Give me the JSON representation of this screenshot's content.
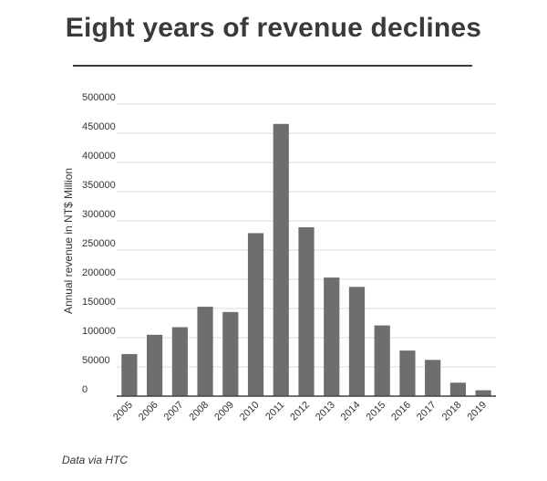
{
  "chart_data": {
    "type": "bar",
    "title": "Eight years of revenue declines",
    "xlabel": "",
    "ylabel": "Annual revenue in NT$ Million",
    "categories": [
      "2005",
      "2006",
      "2007",
      "2008",
      "2009",
      "2010",
      "2011",
      "2012",
      "2013",
      "2014",
      "2015",
      "2016",
      "2017",
      "2018",
      "2019"
    ],
    "values": [
      72000,
      105000,
      118000,
      153000,
      144000,
      279000,
      466000,
      289000,
      203000,
      187000,
      121000,
      78000,
      62000,
      23000,
      10000
    ],
    "ylim": [
      0,
      500000
    ],
    "yticks": [
      "0",
      "50000",
      "100000",
      "150000",
      "200000",
      "250000",
      "300000",
      "350000",
      "400000",
      "450000",
      "500000"
    ],
    "grid": true,
    "bar_color": "#6e6e6e",
    "grid_color": "#dcdcdc",
    "axis_color": "#444444"
  },
  "source": "Data via HTC"
}
